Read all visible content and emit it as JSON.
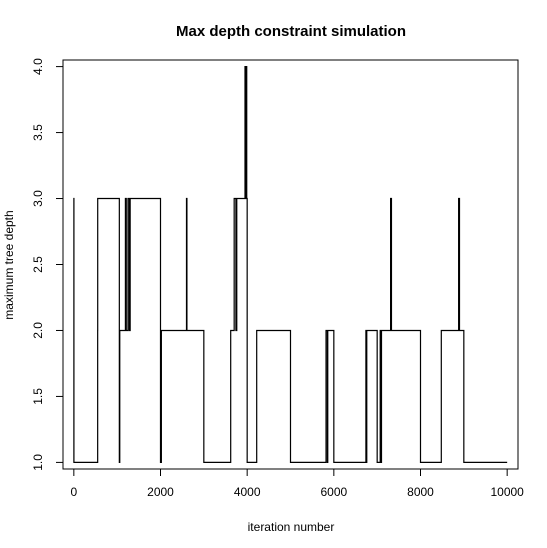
{
  "chart_data": {
    "type": "line",
    "title": "Max depth constraint simulation",
    "xlabel": "iteration number",
    "ylabel": "maximum tree depth",
    "xlim": [
      -250,
      10250
    ],
    "ylim": [
      0.95,
      4.05
    ],
    "x_ticks": [
      0,
      2000,
      4000,
      6000,
      8000,
      10000
    ],
    "x_tick_labels": [
      "0",
      "2000",
      "4000",
      "6000",
      "8000",
      "10000"
    ],
    "y_ticks": [
      1.0,
      1.5,
      2.0,
      2.5,
      3.0,
      3.5,
      4.0
    ],
    "y_tick_labels": [
      "1.0",
      "1.5",
      "2.0",
      "2.5",
      "3.0",
      "3.5",
      "4.0"
    ],
    "grid": false,
    "legend": false,
    "line_style": "step",
    "series": [
      {
        "color": "#000000",
        "x": [
          0,
          1,
          2,
          550,
          551,
          600,
          1000,
          1050,
          1060,
          1100,
          1190,
          1210,
          1250,
          1280,
          1300,
          2000,
          2020,
          2600,
          2610,
          2650,
          3000,
          3620,
          3630,
          3700,
          3740,
          3760,
          3840,
          3950,
          3952,
          3955,
          3970,
          3975,
          3990,
          4000,
          4220,
          4270,
          4300,
          5000,
          5820,
          5850,
          5860,
          5880,
          5900,
          6000,
          6740,
          6750,
          6760,
          6770,
          6800,
          7000,
          7070,
          7090,
          7100,
          7310,
          7312,
          7316,
          7320,
          7325,
          7330,
          7340,
          8000,
          8480,
          8520,
          8880,
          8882,
          8886,
          8890,
          8895,
          8900,
          8920,
          9000,
          10000
        ],
        "y": [
          1,
          3,
          1,
          2,
          3,
          3,
          3,
          1,
          2,
          2,
          3,
          2,
          3,
          2,
          3,
          1,
          2,
          3,
          2,
          2,
          1,
          2,
          2,
          3,
          2,
          3,
          3,
          4,
          3,
          4,
          3,
          4,
          3,
          1,
          2,
          2,
          2,
          1,
          2,
          1,
          2,
          2,
          2,
          1,
          2,
          1,
          2,
          2,
          2,
          1,
          2,
          1,
          2,
          3,
          2,
          3,
          2,
          3,
          2,
          2,
          1,
          2,
          2,
          3,
          2,
          3,
          2,
          3,
          2,
          2,
          1,
          1
        ]
      }
    ]
  }
}
